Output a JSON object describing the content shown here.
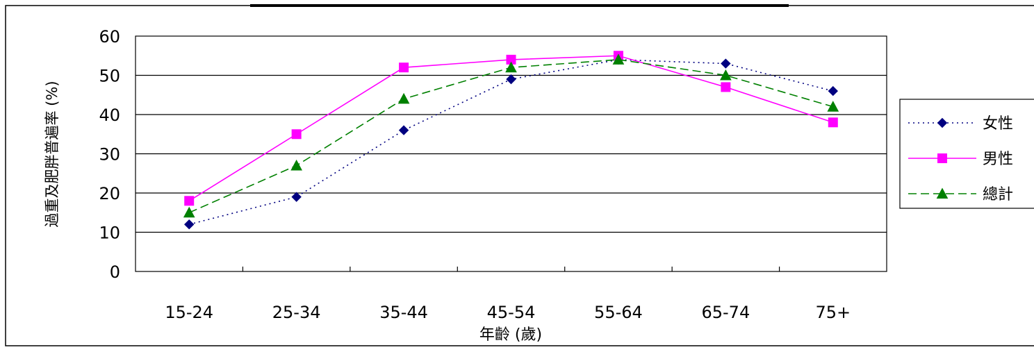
{
  "chart_data": {
    "type": "line",
    "title": "",
    "xlabel": "年齡 (歲)",
    "ylabel": "過重及肥胖普遍率 (%)",
    "ylim": [
      0,
      60
    ],
    "yticks": [
      0,
      10,
      20,
      30,
      40,
      50,
      60
    ],
    "categories": [
      "15-24",
      "25-34",
      "35-44",
      "45-54",
      "55-64",
      "65-74",
      "75+"
    ],
    "grid": "horizontal",
    "legend_position": "right",
    "series": [
      {
        "name": "女性",
        "values": [
          12,
          19,
          36,
          49,
          54,
          53,
          46
        ],
        "color": "#000080",
        "dash": "dotted",
        "marker": "diamond"
      },
      {
        "name": "男性",
        "values": [
          18,
          35,
          52,
          54,
          55,
          47,
          38
        ],
        "color": "#ff00ff",
        "dash": "solid",
        "marker": "square"
      },
      {
        "name": "總計",
        "values": [
          15,
          27,
          44,
          52,
          54,
          50,
          42
        ],
        "color": "#008000",
        "dash": "dashed",
        "marker": "triangle"
      }
    ]
  }
}
